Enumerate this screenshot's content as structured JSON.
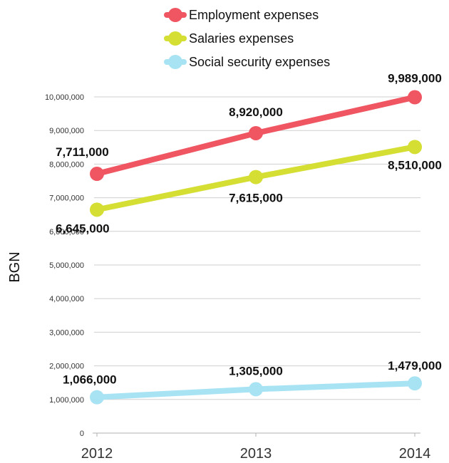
{
  "chart_data": {
    "type": "line",
    "x": [
      "2012",
      "2013",
      "2014"
    ],
    "series": [
      {
        "name": "Employment expenses",
        "color": "#f05562",
        "values": [
          7711000,
          8920000,
          9989000
        ],
        "labels": [
          "7,711,000",
          "8,920,000",
          "9,989,000"
        ]
      },
      {
        "name": "Salaries expenses",
        "color": "#d4de33",
        "values": [
          6645000,
          7615000,
          8510000
        ],
        "labels": [
          "6,645,000",
          "7,615,000",
          "8,510,000"
        ]
      },
      {
        "name": "Social security expenses",
        "color": "#a8e3f4",
        "values": [
          1066000,
          1305000,
          1479000
        ],
        "labels": [
          "1,066,000",
          "1,305,000",
          "1,479,000"
        ]
      }
    ],
    "ylabel": "BGN",
    "xlabel": "",
    "ylim": [
      0,
      10000000
    ],
    "yticks": [
      0,
      1000000,
      2000000,
      3000000,
      4000000,
      5000000,
      6000000,
      7000000,
      8000000,
      9000000,
      10000000
    ],
    "ytick_labels": [
      "0",
      "1,000,000",
      "2,000,000",
      "3,000,000",
      "4,000,000",
      "5,000,000",
      "6,000,000",
      "7,000,000",
      "8,000,000",
      "9,000,000",
      "10,000,000"
    ],
    "grid": true,
    "legend_position": "top-center"
  }
}
